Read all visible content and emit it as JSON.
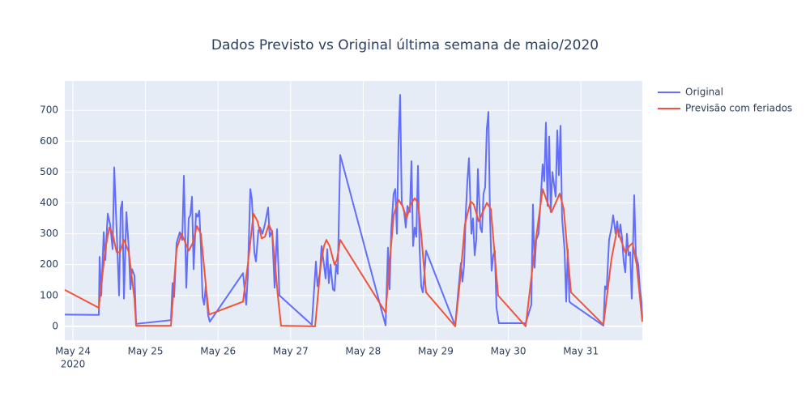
{
  "chart_data": {
    "type": "line",
    "title": "Dados Previsto vs Original última semana de maio/2020",
    "xlim": [
      "2020-05-23T21:19",
      "2020-05-31T20:19"
    ],
    "xticks": [
      {
        "value": "2020-05-24",
        "label": "May 24",
        "sublabel": "2020"
      },
      {
        "value": "2020-05-25",
        "label": "May 25"
      },
      {
        "value": "2020-05-26",
        "label": "May 26"
      },
      {
        "value": "2020-05-27",
        "label": "May 27"
      },
      {
        "value": "2020-05-28",
        "label": "May 28"
      },
      {
        "value": "2020-05-29",
        "label": "May 29"
      },
      {
        "value": "2020-05-30",
        "label": "May 30"
      },
      {
        "value": "2020-05-31",
        "label": "May 31"
      }
    ],
    "ylim": [
      -45,
      795
    ],
    "yticks": [
      0,
      100,
      200,
      300,
      400,
      500,
      600,
      700
    ],
    "grid": true,
    "legend": "right",
    "series": [
      {
        "name": "Original",
        "color": "#636efa",
        "x": [
          "2020-05-23T21:19",
          "2020-05-24T08:34",
          "2020-05-24T08:50",
          "2020-05-24T09:23",
          "2020-05-24T10:11",
          "2020-05-24T10:43",
          "2020-05-24T11:31",
          "2020-05-24T12:19",
          "2020-05-24T13:08",
          "2020-05-24T13:40",
          "2020-05-24T14:28",
          "2020-05-24T15:16",
          "2020-05-24T15:48",
          "2020-05-24T16:20",
          "2020-05-24T16:53",
          "2020-05-24T17:41",
          "2020-05-24T18:29",
          "2020-05-24T19:01",
          "2020-05-24T19:33",
          "2020-05-24T20:21",
          "2020-05-24T20:54",
          "2020-05-25T08:25",
          "2020-05-25T08:57",
          "2020-05-25T09:29",
          "2020-05-25T10:17",
          "2020-05-25T11:21",
          "2020-05-25T12:10",
          "2020-05-25T12:42",
          "2020-05-25T13:30",
          "2020-05-25T14:18",
          "2020-05-25T14:50",
          "2020-05-25T15:23",
          "2020-05-25T15:55",
          "2020-05-25T16:43",
          "2020-05-25T17:15",
          "2020-05-25T17:47",
          "2020-05-25T18:19",
          "2020-05-25T18:52",
          "2020-05-25T19:24",
          "2020-05-25T19:56",
          "2020-05-25T20:44",
          "2020-05-25T21:16",
          "2020-05-26T08:15",
          "2020-05-26T09:19",
          "2020-05-26T09:51",
          "2020-05-26T10:40",
          "2020-05-26T11:12",
          "2020-05-26T12:00",
          "2020-05-26T12:32",
          "2020-05-26T13:20",
          "2020-05-26T13:53",
          "2020-05-26T14:41",
          "2020-05-26T15:29",
          "2020-05-26T16:33",
          "2020-05-26T17:05",
          "2020-05-26T17:53",
          "2020-05-26T18:42",
          "2020-05-26T19:30",
          "2020-05-26T20:18",
          "2020-05-27T07:01",
          "2020-05-27T08:22",
          "2020-05-27T08:53",
          "2020-05-27T09:42",
          "2020-05-27T10:14",
          "2020-05-27T11:02",
          "2020-05-27T11:34",
          "2020-05-27T12:07",
          "2020-05-27T12:38",
          "2020-05-27T13:11",
          "2020-05-27T13:59",
          "2020-05-27T14:31",
          "2020-05-27T15:03",
          "2020-05-27T15:35",
          "2020-05-27T16:24",
          "2020-05-28T07:24",
          "2020-05-28T08:12",
          "2020-05-28T08:44",
          "2020-05-28T09:16",
          "2020-05-28T10:04",
          "2020-05-28T10:37",
          "2020-05-28T11:09",
          "2020-05-28T11:41",
          "2020-05-28T12:13",
          "2020-05-28T12:45",
          "2020-05-28T13:33",
          "2020-05-28T14:05",
          "2020-05-28T14:38",
          "2020-05-28T15:26",
          "2020-05-28T15:58",
          "2020-05-28T16:30",
          "2020-05-28T17:02",
          "2020-05-28T17:34",
          "2020-05-28T18:07",
          "2020-05-28T18:39",
          "2020-05-28T19:11",
          "2020-05-28T19:43",
          "2020-05-28T20:15",
          "2020-05-28T20:47",
          "2020-05-29T06:26",
          "2020-05-29T07:30",
          "2020-05-29T08:18",
          "2020-05-29T08:50",
          "2020-05-29T09:23",
          "2020-05-29T09:55",
          "2020-05-29T10:27",
          "2020-05-29T10:59",
          "2020-05-29T11:47",
          "2020-05-29T12:19",
          "2020-05-29T12:52",
          "2020-05-29T13:24",
          "2020-05-29T13:56",
          "2020-05-29T14:44",
          "2020-05-29T15:16",
          "2020-05-29T15:48",
          "2020-05-29T16:20",
          "2020-05-29T16:53",
          "2020-05-29T17:25",
          "2020-05-29T17:57",
          "2020-05-29T18:29",
          "2020-05-29T19:01",
          "2020-05-29T19:33",
          "2020-05-29T20:05",
          "2020-05-29T20:53",
          "2020-05-30T05:44",
          "2020-05-30T07:36",
          "2020-05-30T08:08",
          "2020-05-30T08:41",
          "2020-05-30T09:13",
          "2020-05-30T10:01",
          "2020-05-30T10:49",
          "2020-05-30T11:21",
          "2020-05-30T11:53",
          "2020-05-30T12:26",
          "2020-05-30T12:58",
          "2020-05-30T13:30",
          "2020-05-30T14:02",
          "2020-05-30T14:34",
          "2020-05-30T15:07",
          "2020-05-30T15:39",
          "2020-05-30T16:11",
          "2020-05-30T16:43",
          "2020-05-30T17:15",
          "2020-05-30T17:47",
          "2020-05-30T18:35",
          "2020-05-30T19:08",
          "2020-05-30T19:40",
          "2020-05-30T20:12",
          "2020-05-30T20:44",
          "2020-05-31T07:27",
          "2020-05-31T07:59",
          "2020-05-31T08:31",
          "2020-05-31T09:19",
          "2020-05-31T10:08",
          "2020-05-31T10:40",
          "2020-05-31T11:28",
          "2020-05-31T12:00",
          "2020-05-31T12:32",
          "2020-05-31T13:04",
          "2020-05-31T13:37",
          "2020-05-31T14:09",
          "2020-05-31T14:41",
          "2020-05-31T15:13",
          "2020-05-31T15:45",
          "2020-05-31T16:17",
          "2020-05-31T16:49",
          "2020-05-31T17:38",
          "2020-05-31T18:10",
          "2020-05-31T18:58",
          "2020-05-31T19:30",
          "2020-05-31T20:02",
          "2020-05-31T20:19"
        ],
        "values": [
          38,
          37,
          225,
          100,
          305,
          215,
          365,
          330,
          250,
          515,
          310,
          100,
          380,
          405,
          90,
          370,
          250,
          120,
          185,
          165,
          8,
          20,
          140,
          95,
          270,
          305,
          280,
          488,
          125,
          350,
          360,
          420,
          185,
          365,
          355,
          375,
          260,
          95,
          70,
          130,
          35,
          15,
          172,
          70,
          165,
          445,
          410,
          240,
          210,
          310,
          320,
          300,
          330,
          385,
          290,
          310,
          125,
          315,
          100,
          5,
          210,
          130,
          175,
          260,
          200,
          155,
          250,
          140,
          200,
          120,
          115,
          200,
          170,
          555,
          3,
          255,
          120,
          310,
          430,
          445,
          300,
          600,
          750,
          400,
          370,
          320,
          390,
          370,
          535,
          260,
          320,
          290,
          520,
          255,
          130,
          110,
          170,
          245,
          2,
          120,
          205,
          145,
          200,
          365,
          470,
          545,
          300,
          350,
          230,
          280,
          510,
          320,
          305,
          430,
          450,
          640,
          695,
          350,
          180,
          230,
          245,
          60,
          10,
          10,
          70,
          395,
          190,
          280,
          300,
          430,
          525,
          470,
          660,
          390,
          615,
          370,
          500,
          460,
          420,
          635,
          490,
          650,
          350,
          250,
          80,
          250,
          80,
          75,
          2,
          130,
          120,
          280,
          320,
          360,
          300,
          340,
          290,
          330,
          285,
          210,
          175,
          300,
          230,
          240,
          90,
          425,
          230,
          200,
          125,
          80,
          25
        ]
      },
      {
        "name": "Previsão com feriados",
        "color": "#ef553b",
        "x": [
          "2020-05-23T21:19",
          "2020-05-24T08:34",
          "2020-05-24T10:43",
          "2020-05-24T12:03",
          "2020-05-24T13:08",
          "2020-05-24T14:28",
          "2020-05-24T15:32",
          "2020-05-24T16:53",
          "2020-05-24T18:29",
          "2020-05-24T20:21",
          "2020-05-24T20:54",
          "2020-05-25T08:25",
          "2020-05-25T10:17",
          "2020-05-25T11:54",
          "2020-05-25T13:14",
          "2020-05-25T14:18",
          "2020-05-25T15:39",
          "2020-05-25T17:00",
          "2020-05-25T18:19",
          "2020-05-25T20:12",
          "2020-05-25T21:00",
          "2020-05-26T08:15",
          "2020-05-26T09:51",
          "2020-05-26T11:44",
          "2020-05-26T13:04",
          "2020-05-26T14:25",
          "2020-05-26T15:29",
          "2020-05-26T16:49",
          "2020-05-26T17:53",
          "2020-05-26T19:46",
          "2020-05-26T20:50",
          "2020-05-27T08:06",
          "2020-05-27T09:58",
          "2020-05-27T11:02",
          "2020-05-27T11:50",
          "2020-05-27T12:54",
          "2020-05-27T14:31",
          "2020-05-27T15:19",
          "2020-05-27T16:24",
          "2020-05-28T07:24",
          "2020-05-28T10:04",
          "2020-05-28T11:41",
          "2020-05-28T13:01",
          "2020-05-28T14:22",
          "2020-05-28T15:42",
          "2020-05-28T17:02",
          "2020-05-28T18:07",
          "2020-05-28T19:11",
          "2020-05-28T20:47",
          "2020-05-29T06:26",
          "2020-05-29T08:02",
          "2020-05-29T09:39",
          "2020-05-29T11:31",
          "2020-05-29T12:35",
          "2020-05-29T14:12",
          "2020-05-29T15:32",
          "2020-05-29T16:53",
          "2020-05-29T18:13",
          "2020-05-29T20:37",
          "2020-05-30T05:44",
          "2020-05-30T08:57",
          "2020-05-30T11:21",
          "2020-05-30T12:58",
          "2020-05-30T14:18",
          "2020-05-30T15:39",
          "2020-05-30T16:59",
          "2020-05-30T18:19",
          "2020-05-30T20:44",
          "2020-05-31T07:27",
          "2020-05-31T10:08",
          "2020-05-31T12:00",
          "2020-05-31T13:04",
          "2020-05-31T14:41",
          "2020-05-31T16:01",
          "2020-05-31T17:06",
          "2020-05-31T18:26",
          "2020-05-31T20:19"
        ],
        "values": [
          118,
          60,
          250,
          320,
          300,
          240,
          240,
          280,
          240,
          90,
          2,
          2,
          250,
          300,
          270,
          245,
          270,
          325,
          300,
          110,
          38,
          80,
          200,
          365,
          340,
          285,
          290,
          330,
          305,
          100,
          2,
          0,
          200,
          260,
          280,
          260,
          200,
          215,
          280,
          45,
          360,
          410,
          390,
          350,
          395,
          415,
          400,
          300,
          110,
          0,
          150,
          330,
          405,
          395,
          340,
          370,
          400,
          380,
          100,
          0,
          270,
          445,
          400,
          370,
          400,
          430,
          380,
          110,
          5,
          220,
          315,
          285,
          240,
          260,
          270,
          200,
          15
        ]
      }
    ]
  }
}
